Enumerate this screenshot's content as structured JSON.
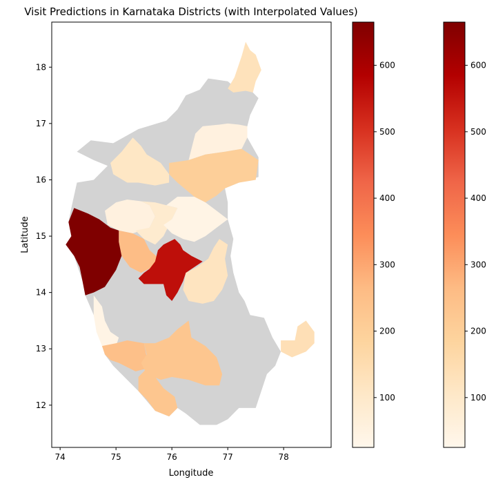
{
  "chart_data": {
    "type": "choropleth",
    "title": "Visit Predictions in Karnataka Districts (with Interpolated Values)",
    "xlabel": "Longitude",
    "ylabel": "Latitude",
    "xlim": [
      73.85,
      78.85
    ],
    "ylim": [
      11.25,
      18.8
    ],
    "x_ticks": [
      74,
      75,
      76,
      77,
      78
    ],
    "y_ticks": [
      12,
      13,
      14,
      15,
      16,
      17,
      18
    ],
    "colormap": "OrRd",
    "colormap_stops": [
      "#fff7ec",
      "#fee8c8",
      "#fdd49e",
      "#fdbb84",
      "#fc8d59",
      "#ef6548",
      "#d7301f",
      "#b30000",
      "#7f0000"
    ],
    "no_data_color": "#d3d3d3",
    "colorbar_range": [
      25,
      665
    ],
    "colorbar_ticks": [
      100,
      200,
      300,
      400,
      500,
      600
    ],
    "colorbars": 2,
    "regions": [
      {
        "value": 130,
        "coords": [
          [
            77.0,
            17.62
          ],
          [
            77.12,
            17.82
          ],
          [
            77.25,
            18.2
          ],
          [
            77.32,
            18.45
          ],
          [
            77.4,
            18.3
          ],
          [
            77.5,
            18.22
          ],
          [
            77.6,
            17.95
          ],
          [
            77.5,
            17.75
          ],
          [
            77.45,
            17.55
          ],
          [
            77.32,
            17.58
          ],
          [
            77.1,
            17.55
          ]
        ]
      },
      {
        "value": 55,
        "coords": [
          [
            76.42,
            16.82
          ],
          [
            76.55,
            16.95
          ],
          [
            76.85,
            16.98
          ],
          [
            77.0,
            17.0
          ],
          [
            77.2,
            16.98
          ],
          [
            77.35,
            16.95
          ],
          [
            77.35,
            16.75
          ],
          [
            77.25,
            16.55
          ],
          [
            76.95,
            16.5
          ],
          [
            76.6,
            16.45
          ],
          [
            76.3,
            16.35
          ],
          [
            76.35,
            16.55
          ]
        ]
      },
      {
        "value": 200,
        "coords": [
          [
            75.95,
            16.3
          ],
          [
            76.3,
            16.35
          ],
          [
            76.6,
            16.45
          ],
          [
            76.95,
            16.5
          ],
          [
            77.25,
            16.55
          ],
          [
            77.55,
            16.35
          ],
          [
            77.5,
            16.0
          ],
          [
            77.2,
            15.95
          ],
          [
            76.95,
            15.85
          ],
          [
            76.8,
            15.72
          ],
          [
            76.6,
            15.6
          ],
          [
            76.4,
            15.7
          ],
          [
            76.1,
            15.95
          ],
          [
            75.95,
            16.1
          ]
        ]
      },
      {
        "value": 110,
        "coords": [
          [
            74.9,
            16.3
          ],
          [
            75.1,
            16.5
          ],
          [
            75.3,
            16.75
          ],
          [
            75.45,
            16.6
          ],
          [
            75.55,
            16.45
          ],
          [
            75.8,
            16.3
          ],
          [
            75.95,
            16.1
          ],
          [
            75.95,
            15.95
          ],
          [
            75.7,
            15.9
          ],
          [
            75.4,
            15.95
          ],
          [
            75.2,
            15.95
          ],
          [
            74.95,
            16.1
          ]
        ]
      },
      {
        "value": 55,
        "coords": [
          [
            74.8,
            15.45
          ],
          [
            75.0,
            15.6
          ],
          [
            75.2,
            15.65
          ],
          [
            75.45,
            15.62
          ],
          [
            75.6,
            15.55
          ],
          [
            75.7,
            15.35
          ],
          [
            75.6,
            15.15
          ],
          [
            75.3,
            15.05
          ],
          [
            75.05,
            15.1
          ],
          [
            74.85,
            15.2
          ]
        ]
      },
      {
        "value": 90,
        "coords": [
          [
            75.45,
            15.62
          ],
          [
            75.7,
            15.6
          ],
          [
            75.9,
            15.55
          ],
          [
            76.1,
            15.5
          ],
          [
            76.0,
            15.3
          ],
          [
            75.85,
            15.0
          ],
          [
            75.7,
            14.85
          ],
          [
            75.5,
            14.95
          ],
          [
            75.35,
            15.1
          ],
          [
            75.6,
            15.15
          ],
          [
            75.7,
            15.35
          ],
          [
            75.6,
            15.55
          ]
        ]
      },
      {
        "value": 40,
        "coords": [
          [
            75.9,
            15.55
          ],
          [
            76.1,
            15.7
          ],
          [
            76.4,
            15.7
          ],
          [
            76.6,
            15.6
          ],
          [
            76.8,
            15.45
          ],
          [
            77.0,
            15.3
          ],
          [
            76.8,
            15.15
          ],
          [
            76.6,
            15.0
          ],
          [
            76.4,
            14.9
          ],
          [
            76.2,
            14.95
          ],
          [
            76.0,
            15.05
          ],
          [
            75.85,
            15.2
          ],
          [
            76.0,
            15.3
          ],
          [
            76.1,
            15.5
          ]
        ]
      },
      {
        "value": 260,
        "coords": [
          [
            75.05,
            15.1
          ],
          [
            75.3,
            15.05
          ],
          [
            75.5,
            14.95
          ],
          [
            75.6,
            14.75
          ],
          [
            75.75,
            14.62
          ],
          [
            75.65,
            14.45
          ],
          [
            75.45,
            14.35
          ],
          [
            75.25,
            14.45
          ],
          [
            75.1,
            14.65
          ],
          [
            75.05,
            14.9
          ]
        ]
      },
      {
        "value": 560,
        "coords": [
          [
            75.7,
            14.55
          ],
          [
            75.75,
            14.75
          ],
          [
            75.85,
            14.85
          ],
          [
            76.05,
            14.95
          ],
          [
            76.15,
            14.85
          ],
          [
            76.2,
            14.75
          ],
          [
            76.35,
            14.65
          ],
          [
            76.55,
            14.55
          ],
          [
            76.4,
            14.45
          ],
          [
            76.25,
            14.35
          ],
          [
            76.2,
            14.2
          ],
          [
            76.1,
            14.0
          ],
          [
            76.0,
            13.85
          ],
          [
            75.9,
            13.95
          ],
          [
            75.85,
            14.15
          ],
          [
            75.7,
            14.15
          ],
          [
            75.5,
            14.15
          ],
          [
            75.4,
            14.25
          ],
          [
            75.5,
            14.35
          ],
          [
            75.6,
            14.42
          ]
        ]
      },
      {
        "value": 665,
        "coords": [
          [
            74.25,
            15.5
          ],
          [
            74.5,
            15.4
          ],
          [
            74.7,
            15.3
          ],
          [
            74.9,
            15.15
          ],
          [
            75.05,
            15.1
          ],
          [
            75.05,
            14.9
          ],
          [
            75.1,
            14.65
          ],
          [
            75.0,
            14.4
          ],
          [
            74.9,
            14.25
          ],
          [
            74.8,
            14.1
          ],
          [
            74.6,
            14.0
          ],
          [
            74.45,
            13.95
          ],
          [
            74.4,
            14.2
          ],
          [
            74.35,
            14.45
          ],
          [
            74.25,
            14.65
          ],
          [
            74.1,
            14.85
          ],
          [
            74.2,
            15.0
          ],
          [
            74.15,
            15.25
          ]
        ]
      },
      {
        "value": 120,
        "coords": [
          [
            76.65,
            14.6
          ],
          [
            76.75,
            14.8
          ],
          [
            76.85,
            14.95
          ],
          [
            77.0,
            14.85
          ],
          [
            76.95,
            14.6
          ],
          [
            77.0,
            14.3
          ],
          [
            76.9,
            14.05
          ],
          [
            76.75,
            13.85
          ],
          [
            76.55,
            13.8
          ],
          [
            76.3,
            13.85
          ],
          [
            76.2,
            14.05
          ],
          [
            76.25,
            14.35
          ],
          [
            76.45,
            14.45
          ]
        ]
      },
      {
        "value": 40,
        "coords": [
          [
            74.6,
            13.95
          ],
          [
            74.75,
            13.75
          ],
          [
            74.8,
            13.5
          ],
          [
            74.9,
            13.3
          ],
          [
            75.05,
            13.2
          ],
          [
            75.0,
            13.05
          ],
          [
            74.75,
            13.05
          ],
          [
            74.65,
            13.3
          ],
          [
            74.6,
            13.6
          ]
        ]
      },
      {
        "value": 250,
        "coords": [
          [
            74.75,
            13.05
          ],
          [
            75.0,
            13.1
          ],
          [
            75.2,
            13.15
          ],
          [
            75.5,
            13.1
          ],
          [
            75.55,
            12.85
          ],
          [
            75.55,
            12.65
          ],
          [
            75.35,
            12.6
          ],
          [
            75.05,
            12.75
          ],
          [
            74.9,
            12.8
          ],
          [
            74.8,
            12.9
          ]
        ]
      },
      {
        "value": 230,
        "coords": [
          [
            75.55,
            12.55
          ],
          [
            75.45,
            12.75
          ],
          [
            75.55,
            12.9
          ],
          [
            75.5,
            13.1
          ],
          [
            75.7,
            13.1
          ],
          [
            75.95,
            13.2
          ],
          [
            76.1,
            13.35
          ],
          [
            76.3,
            13.5
          ],
          [
            76.35,
            13.2
          ],
          [
            76.6,
            13.05
          ],
          [
            76.8,
            12.85
          ],
          [
            76.9,
            12.55
          ],
          [
            76.85,
            12.35
          ],
          [
            76.6,
            12.35
          ],
          [
            76.3,
            12.45
          ],
          [
            76.0,
            12.5
          ],
          [
            75.8,
            12.45
          ]
        ]
      },
      {
        "value": 230,
        "coords": [
          [
            75.4,
            12.5
          ],
          [
            75.55,
            12.65
          ],
          [
            75.7,
            12.5
          ],
          [
            75.85,
            12.3
          ],
          [
            76.05,
            12.15
          ],
          [
            76.1,
            11.95
          ],
          [
            75.95,
            11.8
          ],
          [
            75.7,
            11.9
          ],
          [
            75.55,
            12.1
          ],
          [
            75.4,
            12.25
          ]
        ]
      },
      {
        "value": 140,
        "coords": [
          [
            77.95,
            13.15
          ],
          [
            78.2,
            13.15
          ],
          [
            78.25,
            13.4
          ],
          [
            78.4,
            13.5
          ],
          [
            78.55,
            13.3
          ],
          [
            78.55,
            13.1
          ],
          [
            78.4,
            12.95
          ],
          [
            78.15,
            12.85
          ],
          [
            77.95,
            12.95
          ]
        ]
      }
    ]
  }
}
